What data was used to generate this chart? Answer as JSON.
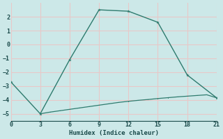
{
  "xlabel": "Humidex (Indice chaleur)",
  "background_color": "#cce8e8",
  "plot_bg_color": "#cce8e8",
  "grid_color": "#e8c8c8",
  "line_color": "#2e7b6e",
  "xlim": [
    0,
    21
  ],
  "ylim": [
    -5.5,
    3.0
  ],
  "xticks": [
    0,
    3,
    6,
    9,
    12,
    15,
    18,
    21
  ],
  "yticks": [
    -5,
    -4,
    -3,
    -2,
    -1,
    0,
    1,
    2
  ],
  "series1_x": [
    0,
    3,
    6,
    9,
    12,
    15,
    18,
    21
  ],
  "series1_y": [
    -2.7,
    -5.0,
    -1.1,
    2.5,
    2.4,
    1.6,
    -2.2,
    -3.85
  ],
  "series2_x": [
    3,
    4,
    5,
    6,
    7,
    8,
    9,
    10,
    11,
    12,
    13,
    14,
    15,
    16,
    17,
    18,
    19,
    20,
    21
  ],
  "series2_y": [
    -5.0,
    -4.88,
    -4.78,
    -4.68,
    -4.58,
    -4.48,
    -4.38,
    -4.28,
    -4.18,
    -4.1,
    -4.03,
    -3.97,
    -3.9,
    -3.84,
    -3.78,
    -3.73,
    -3.68,
    -3.63,
    -3.85
  ]
}
